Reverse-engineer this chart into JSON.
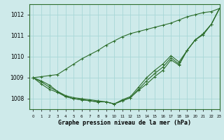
{
  "title": "Graphe pression niveau de la mer (hPa)",
  "background_color": "#ceeaea",
  "grid_color": "#a8d8d8",
  "line_color": "#2d6e2d",
  "xlim": [
    -0.5,
    23
  ],
  "ylim": [
    1007.5,
    1012.5
  ],
  "yticks": [
    1008,
    1009,
    1010,
    1011,
    1012
  ],
  "xticks": [
    0,
    1,
    2,
    3,
    4,
    5,
    6,
    7,
    8,
    9,
    10,
    11,
    12,
    13,
    14,
    15,
    16,
    17,
    18,
    19,
    20,
    21,
    22,
    23
  ],
  "series": {
    "top": [
      1009.0,
      1009.05,
      1009.1,
      1009.15,
      1009.4,
      1009.65,
      1009.9,
      1010.1,
      1010.3,
      1010.55,
      1010.75,
      1010.95,
      1011.1,
      1011.2,
      1011.3,
      1011.4,
      1011.5,
      1011.6,
      1011.75,
      1011.9,
      1012.0,
      1012.1,
      1012.15,
      1012.3
    ],
    "mid1": [
      1009.0,
      1008.85,
      1008.65,
      1008.35,
      1008.15,
      1008.05,
      1008.0,
      1007.95,
      1007.9,
      1007.85,
      1007.75,
      1007.95,
      1008.1,
      1008.55,
      1009.0,
      1009.35,
      1009.65,
      1010.05,
      1009.75,
      1010.3,
      1010.8,
      1011.1,
      1011.55,
      1012.3
    ],
    "mid2": [
      1009.0,
      1008.8,
      1008.55,
      1008.35,
      1008.1,
      1008.0,
      1007.95,
      1007.9,
      1007.85,
      1007.85,
      1007.75,
      1007.9,
      1008.05,
      1008.45,
      1008.85,
      1009.2,
      1009.5,
      1009.95,
      1009.65,
      1010.3,
      1010.8,
      1011.1,
      1011.55,
      1012.3
    ],
    "low": [
      1009.0,
      1008.7,
      1008.45,
      1008.3,
      1008.1,
      1008.0,
      1007.95,
      1007.9,
      1007.85,
      1007.85,
      1007.75,
      1007.9,
      1008.05,
      1008.4,
      1008.7,
      1009.05,
      1009.35,
      1009.85,
      1009.6,
      1010.3,
      1010.8,
      1011.05,
      1011.55,
      1012.3
    ]
  }
}
